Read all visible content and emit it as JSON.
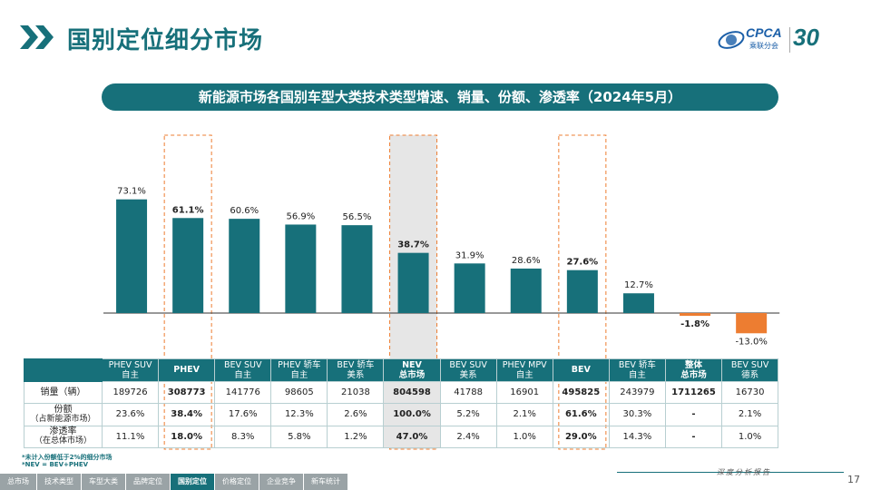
{
  "page": {
    "title": "国别定位细分市场",
    "subtitle": "新能源市场各国别车型大类技术类型增速、销量、份额、渗透率（2024年5月）",
    "page_number": "17",
    "report_label": "深度分析报告"
  },
  "brand": {
    "cpca": "CPCA",
    "cpca_sub": "乘联分会",
    "anniversary": "30"
  },
  "colors": {
    "bar_positive": "#17707a",
    "bar_negative": "#ed7d31",
    "accent": "#17707a",
    "highlight_border": "#ed7d31"
  },
  "chart_data": {
    "type": "bar",
    "title": "新能源市场各国别车型大类技术类型增速、销量、份额、渗透率（2024年5月）",
    "series_name": "增速",
    "categories": [
      "PHEV SUV 自主",
      "PHEV",
      "BEV SUV 自主",
      "PHEV 轿车 自主",
      "BEV 轿车 美系",
      "NEV 总市场",
      "BEV SUV 美系",
      "PHEV MPV 自主",
      "BEV",
      "BEV 轿车 自主",
      "整体 总市场",
      "BEV SUV 德系"
    ],
    "values": [
      73.1,
      61.1,
      60.6,
      56.9,
      56.5,
      38.7,
      31.9,
      28.6,
      27.6,
      12.7,
      -1.8,
      -13.0
    ],
    "labels": [
      "73.1%",
      "61.1%",
      "60.6%",
      "56.9%",
      "56.5%",
      "38.7%",
      "31.9%",
      "28.6%",
      "27.6%",
      "12.7%",
      "-1.8%",
      "-13.0%"
    ],
    "bold_labels": [
      false,
      true,
      false,
      false,
      false,
      true,
      false,
      false,
      true,
      false,
      true,
      false
    ],
    "highlighted": [
      "PHEV",
      "NEV 总市场",
      "BEV"
    ],
    "ylim": [
      -16,
      80
    ],
    "xlabel": "",
    "ylabel": ""
  },
  "table": {
    "headers": [
      {
        "line1": "PHEV SUV",
        "line2": "自主",
        "bold": false
      },
      {
        "line1": "PHEV",
        "line2": "",
        "bold": true
      },
      {
        "line1": "BEV SUV",
        "line2": "自主",
        "bold": false
      },
      {
        "line1": "PHEV 轿车",
        "line2": "自主",
        "bold": false
      },
      {
        "line1": "BEV 轿车",
        "line2": "美系",
        "bold": false
      },
      {
        "line1": "NEV",
        "line2": "总市场",
        "bold": true
      },
      {
        "line1": "BEV SUV",
        "line2": "美系",
        "bold": false
      },
      {
        "line1": "PHEV MPV",
        "line2": "自主",
        "bold": false
      },
      {
        "line1": "BEV",
        "line2": "",
        "bold": true
      },
      {
        "line1": "BEV 轿车",
        "line2": "自主",
        "bold": false
      },
      {
        "line1": "整体",
        "line2": "总市场",
        "bold": true
      },
      {
        "line1": "BEV SUV",
        "line2": "德系",
        "bold": false
      }
    ],
    "rows": [
      {
        "label1": "销量（辆）",
        "label2": "",
        "cells": [
          "189726",
          "308773",
          "141776",
          "98605",
          "21038",
          "804598",
          "41788",
          "16901",
          "495825",
          "243979",
          "1711265",
          "16730"
        ]
      },
      {
        "label1": "份额",
        "label2": "（占新能源市场）",
        "cells": [
          "23.6%",
          "38.4%",
          "17.6%",
          "12.3%",
          "2.6%",
          "100.0%",
          "5.2%",
          "2.1%",
          "61.6%",
          "30.3%",
          "-",
          "2.1%"
        ]
      },
      {
        "label1": "渗透率",
        "label2": "（在总体市场）",
        "cells": [
          "11.1%",
          "18.0%",
          "8.3%",
          "5.8%",
          "1.2%",
          "47.0%",
          "2.4%",
          "1.0%",
          "29.0%",
          "14.3%",
          "-",
          "1.0%"
        ]
      }
    ],
    "bold_columns": [
      1,
      5,
      8,
      10
    ],
    "shaded_column": 5
  },
  "footnotes": [
    "*未计入份额低于2%的细分市场",
    "*NEV = BEV+PHEV"
  ],
  "nav": {
    "tabs": [
      "总市场",
      "技术类型",
      "车型大类",
      "品牌定位",
      "国别定位",
      "价格定位",
      "企业竞争",
      "新车统计"
    ],
    "active_index": 4
  }
}
